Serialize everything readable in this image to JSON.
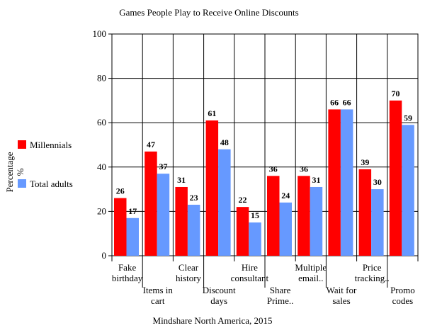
{
  "chart_data": {
    "type": "bar",
    "title": "Games People Play to Receive Online Discounts",
    "source": "Mindshare North America, 2015",
    "ylabel": "Percentage %",
    "ylabel_lines": [
      "Percentage",
      "%"
    ],
    "xlabel": "",
    "ylim": [
      0,
      100
    ],
    "yticks": [
      0,
      20,
      40,
      60,
      80,
      100
    ],
    "grid": true,
    "legend_position": "left",
    "categories": [
      "Fake birthday",
      "Items in cart",
      "Clear history",
      "Discount days",
      "Hire consultant",
      "Share Prime..",
      "Multiple email..",
      "Wait for sales",
      "Price tracking..",
      "Promo codes"
    ],
    "category_lines": [
      [
        "Fake",
        "birthday"
      ],
      [
        "Items in",
        "cart"
      ],
      [
        "Clear",
        "history"
      ],
      [
        "Discount",
        "days"
      ],
      [
        "Hire",
        "consultant"
      ],
      [
        "Share",
        "Prime.."
      ],
      [
        "Multiple",
        "email.."
      ],
      [
        "Wait for",
        "sales"
      ],
      [
        "Price",
        "tracking.."
      ],
      [
        "Promo",
        "codes"
      ]
    ],
    "series": [
      {
        "name": "Millennials",
        "color": "#ff0000",
        "values": [
          26,
          47,
          31,
          61,
          22,
          36,
          36,
          66,
          39,
          70
        ]
      },
      {
        "name": "Total adults",
        "color": "#6699ff",
        "values": [
          17,
          37,
          23,
          48,
          15,
          24,
          31,
          66,
          30,
          59
        ]
      }
    ]
  }
}
